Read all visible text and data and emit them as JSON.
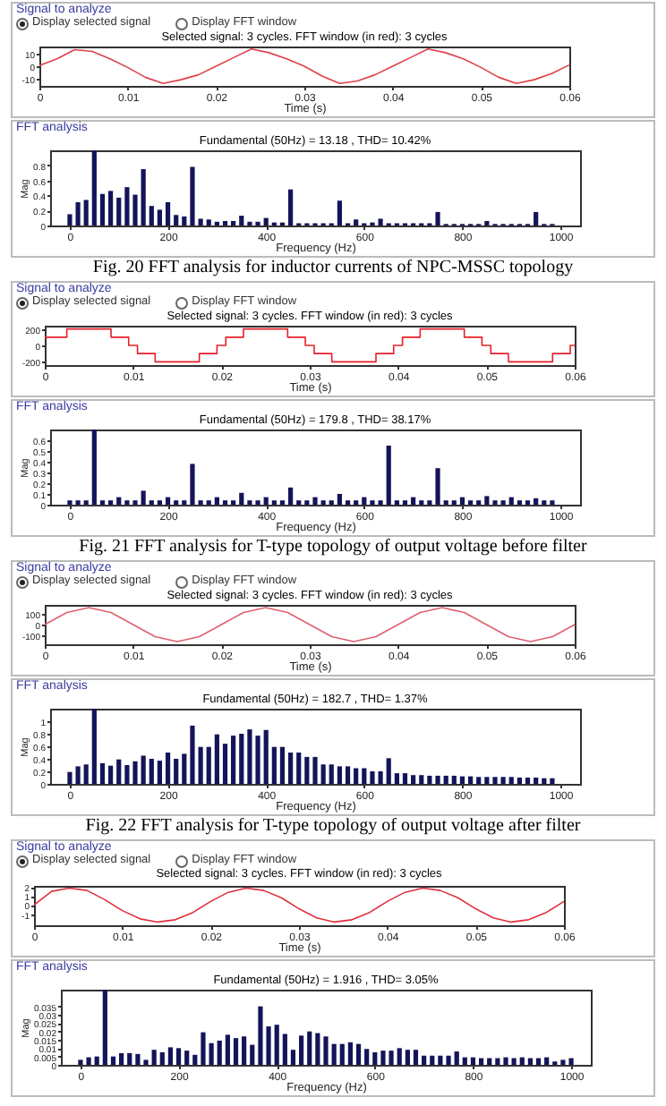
{
  "chart_data": [
    {
      "type": "line",
      "title": "Selected signal: 3 cycles. FFT window (in red): 3 cycles",
      "xlabel": "Time (s)",
      "color": "#e0404a",
      "annotations": [
        "Signal to analyze",
        "Display selected signal",
        "Display FFT window"
      ],
      "x": [
        0,
        0.002,
        0.004,
        0.006,
        0.008,
        0.01,
        0.012,
        0.014,
        0.016,
        0.018,
        0.02,
        0.022,
        0.024,
        0.026,
        0.028,
        0.03,
        0.032,
        0.034,
        0.036,
        0.038,
        0.04,
        0.042,
        0.044,
        0.046,
        0.048,
        0.05,
        0.052,
        0.054,
        0.056,
        0.058,
        0.06
      ],
      "values": [
        0.5,
        6,
        13.5,
        12,
        6,
        -1,
        -9,
        -14,
        -11,
        -7,
        0,
        7,
        14,
        11,
        6,
        0,
        -8,
        -14,
        -12,
        -7,
        0,
        7,
        14,
        11,
        6,
        -1,
        -9,
        -14,
        -11,
        -6,
        1
      ],
      "xlim": [
        0,
        0.06
      ],
      "xticks": [
        0,
        0.01,
        0.02,
        0.03,
        0.04,
        0.05,
        0.06
      ],
      "ylim": [
        -16,
        16
      ],
      "yticks": [
        -10,
        0,
        10
      ]
    },
    {
      "type": "bar",
      "title": "Fundamental (50Hz) = 13.18 , THD= 10.42%",
      "xlabel": "Frequency (Hz)",
      "ylabel": "Mag",
      "color": "#14145a",
      "annotations": [
        "FFT analysis",
        "Fig. 20 FFT analysis for inductor currents of NPC-MSSC topology"
      ],
      "x": [
        0,
        16.7,
        33.3,
        50,
        66.7,
        83.3,
        100,
        116.7,
        133.3,
        150,
        166.7,
        183.3,
        200,
        216.7,
        233.3,
        250,
        266.7,
        283.3,
        300,
        316.7,
        333.3,
        350,
        366.7,
        383.3,
        400,
        416.7,
        433.3,
        450,
        466.7,
        483.3,
        500,
        516.7,
        533.3,
        550,
        566.7,
        583.3,
        600,
        616.7,
        633.3,
        650,
        666.7,
        683.3,
        700,
        716.7,
        733.3,
        750,
        766.7,
        783.3,
        800,
        816.7,
        833.3,
        850,
        866.7,
        883.3,
        900,
        916.7,
        933.3,
        950,
        966.7,
        983.3
      ],
      "values": [
        0.15,
        0.31,
        0.34,
        1,
        0.42,
        0.46,
        0.37,
        0.51,
        0.41,
        0.75,
        0.26,
        0.21,
        0.31,
        0.14,
        0.12,
        0.78,
        0.09,
        0.08,
        0.05,
        0.06,
        0.06,
        0.13,
        0.05,
        0.05,
        0.1,
        0.04,
        0.04,
        0.48,
        0.03,
        0.03,
        0.03,
        0.03,
        0.03,
        0.33,
        0.03,
        0.08,
        0.03,
        0.04,
        0.09,
        0.03,
        0.03,
        0.03,
        0.03,
        0.03,
        0.03,
        0.18,
        0.02,
        0.02,
        0.02,
        0.02,
        0.02,
        0.06,
        0.02,
        0.02,
        0.02,
        0.02,
        0.02,
        0.18,
        0.02,
        0.02
      ],
      "xlim": [
        -40,
        1040
      ],
      "xticks": [
        0,
        200,
        400,
        600,
        800,
        1000
      ],
      "ylim": [
        0,
        1
      ],
      "yticks": [
        0,
        0.2,
        0.4,
        0.6,
        0.8
      ]
    },
    {
      "type": "step",
      "title": "Selected signal: 3 cycles. FFT window (in red): 3 cycles",
      "xlabel": "Time (s)",
      "color": "#e8202a",
      "annotations": [
        "Signal to analyze",
        "Display selected signal",
        "Display FFT window"
      ],
      "x": [
        0,
        0.0025,
        0.0075,
        0.0095,
        0.0105,
        0.0125,
        0.0175,
        0.0195,
        0.0205,
        0.0225,
        0.0275,
        0.0295,
        0.0305,
        0.0325,
        0.0375,
        0.0395,
        0.0405,
        0.0425,
        0.0475,
        0.0495,
        0.0505,
        0.0525,
        0.0575,
        0.0595,
        0.06
      ],
      "values": [
        100,
        200,
        100,
        0,
        -100,
        -200,
        -100,
        0,
        100,
        200,
        100,
        0,
        -100,
        -200,
        -100,
        0,
        100,
        200,
        100,
        0,
        -100,
        -200,
        -100,
        0,
        0
      ],
      "xlim": [
        0,
        0.06
      ],
      "xticks": [
        0,
        0.01,
        0.02,
        0.03,
        0.04,
        0.05,
        0.06
      ],
      "ylim": [
        -240,
        240
      ],
      "yticks": [
        -200,
        0,
        200
      ]
    },
    {
      "type": "bar",
      "title": "Fundamental (50Hz) = 179.8 , THD= 38.17%",
      "xlabel": "Frequency (Hz)",
      "ylabel": "Mag",
      "color": "#14145a",
      "annotations": [
        "FFT analysis",
        "Fig. 21 FFT analysis for T-type topology of output voltage before filter"
      ],
      "x": [
        0,
        16.7,
        33.3,
        50,
        66.7,
        83.3,
        100,
        116.7,
        133.3,
        150,
        166.7,
        183.3,
        200,
        216.7,
        233.3,
        250,
        266.7,
        283.3,
        300,
        316.7,
        333.3,
        350,
        366.7,
        383.3,
        400,
        416.7,
        433.3,
        450,
        466.7,
        483.3,
        500,
        516.7,
        533.3,
        550,
        566.7,
        583.3,
        600,
        616.7,
        633.3,
        650,
        666.7,
        683.3,
        700,
        716.7,
        733.3,
        750,
        766.7,
        783.3,
        800,
        816.7,
        833.3,
        850,
        866.7,
        883.3,
        900,
        916.7,
        933.3,
        950,
        966.7,
        983.3
      ],
      "values": [
        0.04,
        0.04,
        0.04,
        0.7,
        0.04,
        0.04,
        0.07,
        0.04,
        0.04,
        0.13,
        0.04,
        0.04,
        0.07,
        0.04,
        0.04,
        0.38,
        0.04,
        0.04,
        0.07,
        0.04,
        0.04,
        0.11,
        0.04,
        0.04,
        0.07,
        0.04,
        0.04,
        0.16,
        0.04,
        0.04,
        0.07,
        0.04,
        0.04,
        0.1,
        0.04,
        0.04,
        0.07,
        0.04,
        0.04,
        0.55,
        0.04,
        0.04,
        0.07,
        0.04,
        0.04,
        0.34,
        0.04,
        0.04,
        0.07,
        0.04,
        0.04,
        0.08,
        0.04,
        0.04,
        0.07,
        0.04,
        0.04,
        0.06,
        0.04,
        0.04
      ],
      "xlim": [
        -40,
        1040
      ],
      "xticks": [
        0,
        200,
        400,
        600,
        800,
        1000
      ],
      "ylim": [
        0,
        0.7
      ],
      "yticks": [
        0,
        0.1,
        0.2,
        0.3,
        0.4,
        0.5,
        0.6
      ]
    },
    {
      "type": "line",
      "title": "Selected signal: 3 cycles. FFT window (in red): 3 cycles",
      "xlabel": "Time (s)",
      "color": "#e06070",
      "annotations": [
        "Signal to analyze",
        "Display selected signal",
        "Display FFT window"
      ],
      "x": [
        0,
        0.0025,
        0.005,
        0.0075,
        0.01,
        0.0125,
        0.015,
        0.0175,
        0.02,
        0.0225,
        0.025,
        0.0275,
        0.03,
        0.0325,
        0.035,
        0.0375,
        0.04,
        0.0425,
        0.045,
        0.0475,
        0.05,
        0.0525,
        0.055,
        0.0575,
        0.06
      ],
      "values": [
        0,
        110,
        155,
        110,
        0,
        -110,
        -155,
        -110,
        0,
        110,
        155,
        110,
        0,
        -110,
        -155,
        -110,
        0,
        110,
        155,
        110,
        0,
        -110,
        -155,
        -110,
        0
      ],
      "xlim": [
        0,
        0.06
      ],
      "xticks": [
        0,
        0.01,
        0.02,
        0.03,
        0.04,
        0.05,
        0.06
      ],
      "ylim": [
        -180,
        180
      ],
      "yticks": [
        -100,
        0,
        100
      ]
    },
    {
      "type": "bar",
      "title": "Fundamental (50Hz) = 182.7 , THD= 1.37%",
      "xlabel": "Frequency (Hz)",
      "ylabel": "Mag",
      "color": "#14145a",
      "annotations": [
        "FFT analysis",
        "Fig. 22 FFT analysis for T-type topology of output voltage after filter"
      ],
      "x": [
        0,
        16.7,
        33.3,
        50,
        66.7,
        83.3,
        100,
        116.7,
        133.3,
        150,
        166.7,
        183.3,
        200,
        216.7,
        233.3,
        250,
        266.7,
        283.3,
        300,
        316.7,
        333.3,
        350,
        366.7,
        383.3,
        400,
        416.7,
        433.3,
        450,
        466.7,
        483.3,
        500,
        516.7,
        533.3,
        550,
        566.7,
        583.3,
        600,
        616.7,
        633.3,
        650,
        666.7,
        683.3,
        700,
        716.7,
        733.3,
        750,
        766.7,
        783.3,
        800,
        816.7,
        833.3,
        850,
        866.7,
        883.3,
        900,
        916.7,
        933.3,
        950,
        966.7,
        983.3
      ],
      "values": [
        0.19,
        0.28,
        0.31,
        1.2,
        0.33,
        0.29,
        0.39,
        0.3,
        0.36,
        0.45,
        0.4,
        0.37,
        0.5,
        0.4,
        0.48,
        0.93,
        0.59,
        0.59,
        0.79,
        0.64,
        0.77,
        0.8,
        0.87,
        0.77,
        0.86,
        0.59,
        0.59,
        0.5,
        0.5,
        0.43,
        0.43,
        0.31,
        0.31,
        0.28,
        0.28,
        0.25,
        0.25,
        0.2,
        0.2,
        0.41,
        0.17,
        0.17,
        0.14,
        0.14,
        0.13,
        0.13,
        0.13,
        0.13,
        0.12,
        0.12,
        0.11,
        0.11,
        0.11,
        0.11,
        0.11,
        0.1,
        0.1,
        0.1,
        0.09,
        0.09
      ],
      "xlim": [
        -40,
        1040
      ],
      "xticks": [
        0,
        200,
        400,
        600,
        800,
        1000
      ],
      "ylim": [
        0,
        1.2
      ],
      "yticks": [
        0,
        0.2,
        0.4,
        0.6,
        0.8,
        1
      ]
    },
    {
      "type": "line",
      "title": "Selected signal: 3 cycles. FFT window (in red): 3 cycles",
      "xlabel": "Time (s)",
      "color": "#e0303a",
      "annotations": [
        "Signal to analyze",
        "Display selected signal",
        "Display FFT window"
      ],
      "x": [
        0,
        0.002,
        0.004,
        0.006,
        0.008,
        0.01,
        0.012,
        0.014,
        0.016,
        0.018,
        0.02,
        0.022,
        0.024,
        0.026,
        0.028,
        0.03,
        0.032,
        0.034,
        0.036,
        0.038,
        0.04,
        0.042,
        0.044,
        0.046,
        0.048,
        0.05,
        0.052,
        0.054,
        0.056,
        0.058,
        0.06
      ],
      "values": [
        0,
        1.5,
        1.85,
        1.6,
        0.6,
        -0.6,
        -1.5,
        -1.85,
        -1.6,
        -0.8,
        0.4,
        1.4,
        1.85,
        1.6,
        0.8,
        -0.4,
        -1.4,
        -1.85,
        -1.6,
        -0.8,
        0.4,
        1.4,
        1.85,
        1.6,
        0.8,
        -0.4,
        -1.4,
        -1.85,
        -1.6,
        -0.8,
        0.4
      ],
      "xlim": [
        0,
        0.06
      ],
      "xticks": [
        0,
        0.01,
        0.02,
        0.03,
        0.04,
        0.05,
        0.06
      ],
      "ylim": [
        -2.2,
        2.1
      ],
      "yticks": [
        -1,
        0,
        1,
        2
      ]
    },
    {
      "type": "bar",
      "title": "Fundamental (50Hz) = 1.916 , THD= 3.05%",
      "xlabel": "Frequency (Hz)",
      "ylabel": "Mag",
      "color": "#14145a",
      "annotations": [
        "FFT analysis"
      ],
      "x": [
        0,
        16.7,
        33.3,
        50,
        66.7,
        83.3,
        100,
        116.7,
        133.3,
        150,
        166.7,
        183.3,
        200,
        216.7,
        233.3,
        250,
        266.7,
        283.3,
        300,
        316.7,
        333.3,
        350,
        366.7,
        383.3,
        400,
        416.7,
        433.3,
        450,
        466.7,
        483.3,
        500,
        516.7,
        533.3,
        550,
        566.7,
        583.3,
        600,
        616.7,
        633.3,
        650,
        666.7,
        683.3,
        700,
        716.7,
        733.3,
        750,
        766.7,
        783.3,
        800,
        816.7,
        833.3,
        850,
        866.7,
        883.3,
        900,
        916.7,
        933.3,
        950,
        966.7,
        983.3,
        1000
      ],
      "values": [
        0.003,
        0.0045,
        0.005,
        0.045,
        0.005,
        0.007,
        0.007,
        0.0065,
        0.003,
        0.009,
        0.0075,
        0.0105,
        0.01,
        0.0085,
        0.006,
        0.0195,
        0.013,
        0.0145,
        0.018,
        0.016,
        0.017,
        0.012,
        0.035,
        0.023,
        0.024,
        0.0185,
        0.009,
        0.0175,
        0.02,
        0.019,
        0.017,
        0.0125,
        0.0125,
        0.0135,
        0.0125,
        0.0095,
        0.0075,
        0.0085,
        0.0085,
        0.01,
        0.009,
        0.009,
        0.0055,
        0.0055,
        0.0055,
        0.0055,
        0.008,
        0.0045,
        0.0045,
        0.004,
        0.004,
        0.004,
        0.0045,
        0.004,
        0.0045,
        0.004,
        0.004,
        0.0045,
        0.002,
        0.003,
        0.004
      ],
      "xlim": [
        -40,
        1040
      ],
      "xticks": [
        0,
        200,
        400,
        600,
        800,
        1000
      ],
      "ylim": [
        0,
        0.045
      ],
      "yticks": [
        0,
        0.005,
        0.01,
        0.015,
        0.02,
        0.025,
        0.03,
        0.035
      ]
    }
  ]
}
